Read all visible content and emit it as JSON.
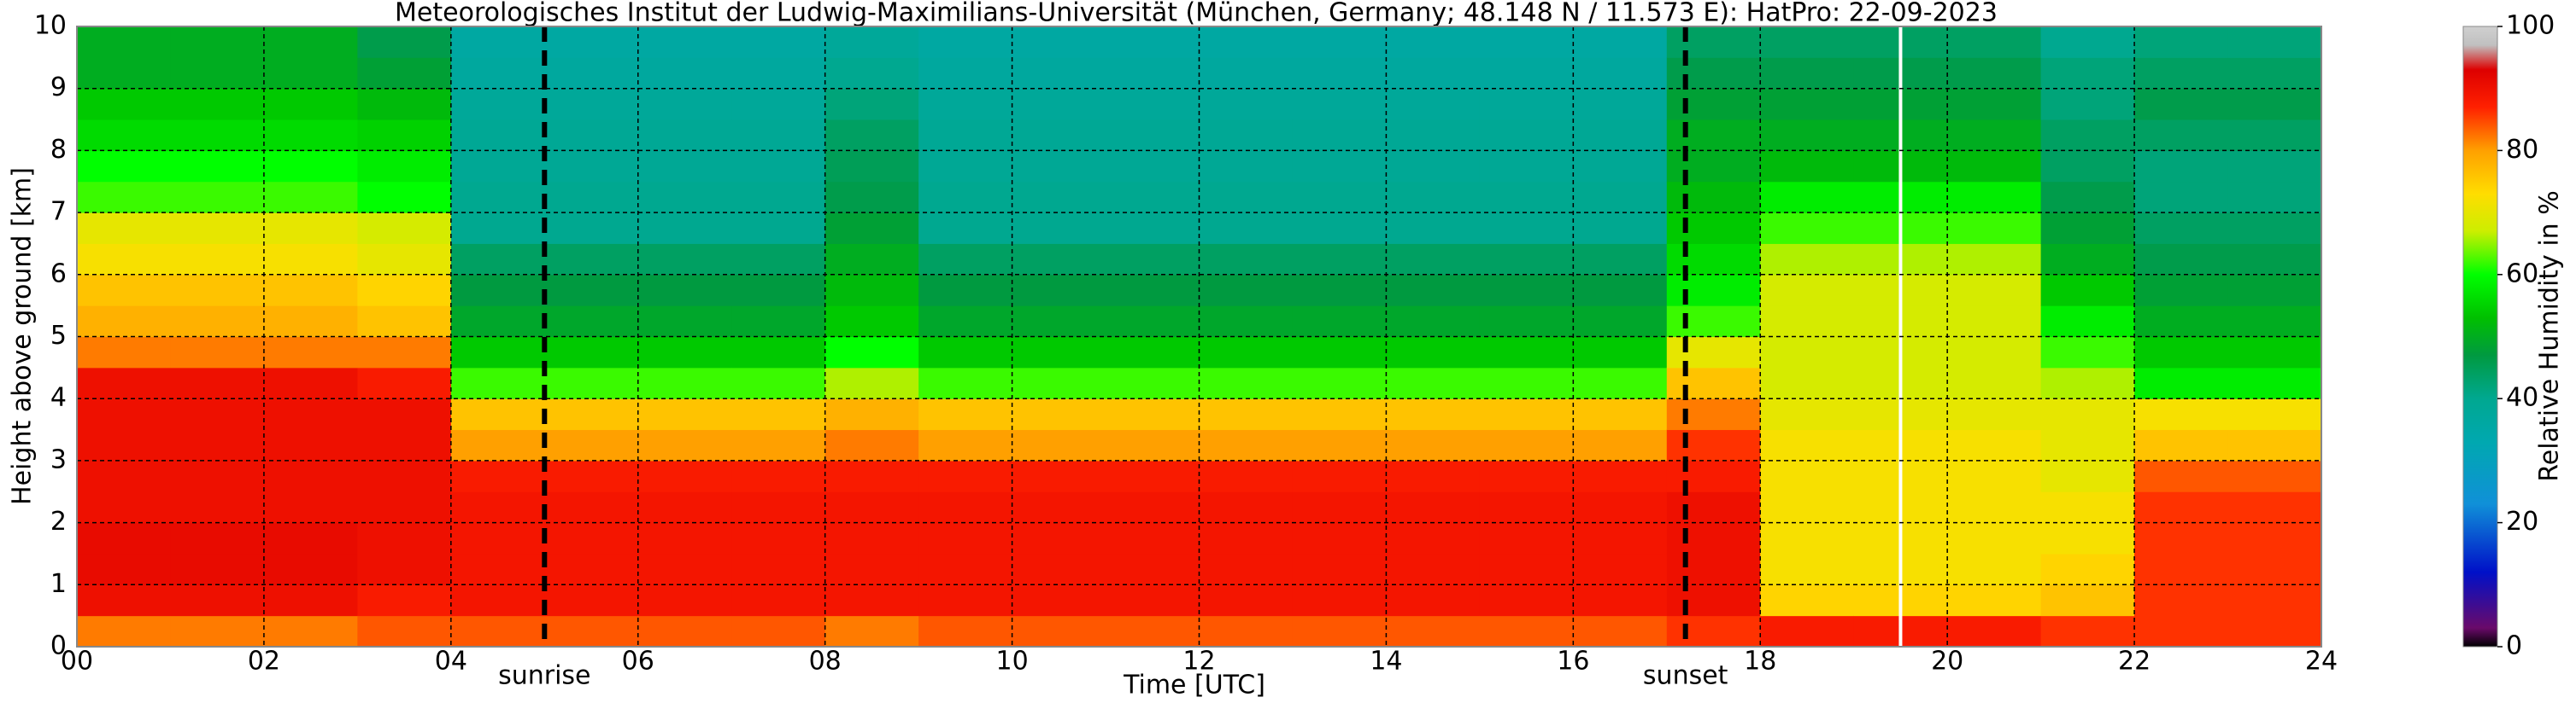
{
  "chart_data": {
    "type": "heatmap",
    "title": "Meteorologisches Institut der Ludwig-Maximilians-Universität (München, Germany; 48.148 N / 11.573 E):    HatPro: 22-09-2023",
    "x_label": "Time [UTC]",
    "y_label": "Height above ground [km]",
    "colorbar_label": "Relative Humidity in %",
    "xlim": [
      0,
      24
    ],
    "ylim": [
      0,
      10
    ],
    "clim": [
      0,
      100
    ],
    "xticks": [
      {
        "value": 0,
        "label": "00"
      },
      {
        "value": 2,
        "label": "02"
      },
      {
        "value": 4,
        "label": "04"
      },
      {
        "value": 6,
        "label": "06"
      },
      {
        "value": 8,
        "label": "08"
      },
      10,
      12,
      14,
      16,
      18,
      20,
      22,
      24
    ],
    "yticks": [
      0,
      1,
      2,
      3,
      4,
      5,
      6,
      7,
      8,
      9,
      10
    ],
    "cticks": [
      0,
      20,
      40,
      60,
      80,
      100
    ],
    "grid": true,
    "colorscale": [
      [
        0,
        "#000000"
      ],
      [
        3,
        "#6a0a6a"
      ],
      [
        12,
        "#0010c8"
      ],
      [
        23,
        "#1090d8"
      ],
      [
        33,
        "#00a8b0"
      ],
      [
        40,
        "#00a890"
      ],
      [
        47,
        "#009a40"
      ],
      [
        53,
        "#00c000"
      ],
      [
        60,
        "#00ff00"
      ],
      [
        67,
        "#ccee00"
      ],
      [
        73,
        "#ffdd00"
      ],
      [
        80,
        "#ffa000"
      ],
      [
        87,
        "#ff2000"
      ],
      [
        93,
        "#dd0000"
      ],
      [
        97,
        "#c0c0c0"
      ],
      [
        100,
        "#d0d0d0"
      ]
    ],
    "annotations": [
      {
        "text": "sunrise",
        "x": 5.0
      },
      {
        "text": "sunset",
        "x": 17.2
      }
    ],
    "blank_lines_x": [
      19.5
    ],
    "x_edges": [
      0,
      1,
      2,
      3,
      4,
      5,
      6,
      7,
      8,
      9,
      10,
      11,
      12,
      13,
      14,
      15,
      16,
      17,
      18,
      19,
      20,
      21,
      22,
      23,
      24
    ],
    "y_edges": [
      0,
      0.5,
      1,
      1.5,
      2,
      2.5,
      3,
      3.5,
      4,
      4.5,
      5,
      5.5,
      6,
      6.5,
      7,
      7.5,
      8,
      8.5,
      9,
      9.5,
      10
    ],
    "z": [
      [
        82,
        90,
        91,
        91,
        90,
        90,
        90,
        90,
        90,
        82,
        78,
        76,
        72,
        70,
        62,
        60,
        56,
        54,
        50,
        50
      ],
      [
        82,
        90,
        91,
        91,
        90,
        90,
        90,
        90,
        90,
        82,
        78,
        76,
        72,
        70,
        62,
        60,
        56,
        54,
        50,
        50
      ],
      [
        82,
        90,
        91,
        91,
        90,
        90,
        90,
        90,
        90,
        82,
        78,
        76,
        72,
        70,
        62,
        60,
        56,
        54,
        50,
        50
      ],
      [
        84,
        88,
        90,
        90,
        90,
        90,
        90,
        90,
        88,
        82,
        76,
        74,
        70,
        68,
        60,
        58,
        55,
        52,
        48,
        46
      ],
      [
        84,
        89,
        89,
        89,
        89,
        88,
        80,
        76,
        62,
        54,
        49,
        47,
        44,
        40,
        40,
        39,
        39,
        38,
        37,
        36
      ],
      [
        84,
        89,
        89,
        89,
        89,
        88,
        80,
        76,
        62,
        54,
        49,
        47,
        44,
        40,
        40,
        39,
        39,
        38,
        37,
        36
      ],
      [
        84,
        89,
        89,
        89,
        89,
        88,
        80,
        76,
        62,
        54,
        49,
        47,
        44,
        40,
        40,
        39,
        39,
        38,
        37,
        36
      ],
      [
        84,
        89,
        89,
        89,
        89,
        88,
        80,
        76,
        62,
        54,
        49,
        47,
        44,
        40,
        40,
        39,
        39,
        38,
        37,
        36
      ],
      [
        82,
        89,
        89,
        89,
        89,
        88,
        82,
        78,
        66,
        60,
        54,
        52,
        50,
        48,
        46,
        45,
        44,
        42,
        40,
        38
      ],
      [
        84,
        89,
        89,
        89,
        89,
        88,
        80,
        76,
        62,
        54,
        49,
        47,
        44,
        40,
        40,
        39,
        39,
        38,
        37,
        36
      ],
      [
        84,
        89,
        89,
        89,
        89,
        88,
        80,
        76,
        62,
        54,
        49,
        47,
        44,
        40,
        40,
        39,
        39,
        38,
        37,
        36
      ],
      [
        84,
        89,
        89,
        89,
        89,
        88,
        80,
        76,
        62,
        54,
        49,
        47,
        44,
        40,
        40,
        39,
        39,
        38,
        37,
        36
      ],
      [
        84,
        89,
        89,
        89,
        89,
        88,
        80,
        76,
        62,
        54,
        49,
        47,
        44,
        40,
        40,
        39,
        39,
        38,
        37,
        36
      ],
      [
        84,
        89,
        89,
        89,
        89,
        88,
        80,
        76,
        62,
        54,
        49,
        47,
        44,
        40,
        40,
        39,
        39,
        38,
        37,
        36
      ],
      [
        84,
        89,
        89,
        89,
        89,
        88,
        80,
        76,
        62,
        54,
        49,
        47,
        44,
        40,
        40,
        39,
        39,
        38,
        37,
        36
      ],
      [
        84,
        89,
        89,
        89,
        89,
        88,
        80,
        76,
        62,
        54,
        49,
        47,
        44,
        40,
        40,
        39,
        39,
        38,
        37,
        36
      ],
      [
        84,
        89,
        89,
        89,
        89,
        88,
        80,
        76,
        62,
        54,
        49,
        47,
        44,
        40,
        40,
        39,
        39,
        38,
        37,
        36
      ],
      [
        86,
        90,
        90,
        90,
        90,
        88,
        86,
        82,
        76,
        70,
        62,
        58,
        56,
        54,
        52,
        50,
        50,
        48,
        46,
        44
      ],
      [
        88,
        74,
        72,
        72,
        72,
        72,
        72,
        70,
        68,
        68,
        68,
        68,
        66,
        62,
        58,
        52,
        50,
        48,
        46,
        44
      ],
      [
        88,
        74,
        72,
        72,
        72,
        72,
        72,
        70,
        68,
        68,
        68,
        68,
        66,
        62,
        58,
        52,
        50,
        48,
        46,
        44
      ],
      [
        88,
        74,
        72,
        72,
        72,
        72,
        72,
        70,
        68,
        68,
        68,
        68,
        66,
        62,
        58,
        52,
        50,
        48,
        46,
        44
      ],
      [
        86,
        76,
        74,
        72,
        72,
        70,
        70,
        70,
        66,
        62,
        58,
        54,
        50,
        48,
        46,
        44,
        44,
        42,
        42,
        40
      ],
      [
        86,
        86,
        86,
        86,
        86,
        84,
        76,
        72,
        58,
        54,
        50,
        48,
        46,
        44,
        42,
        42,
        44,
        46,
        44,
        42
      ],
      [
        86,
        86,
        86,
        86,
        86,
        84,
        76,
        72,
        58,
        54,
        50,
        48,
        46,
        44,
        42,
        42,
        44,
        46,
        44,
        42
      ]
    ]
  }
}
